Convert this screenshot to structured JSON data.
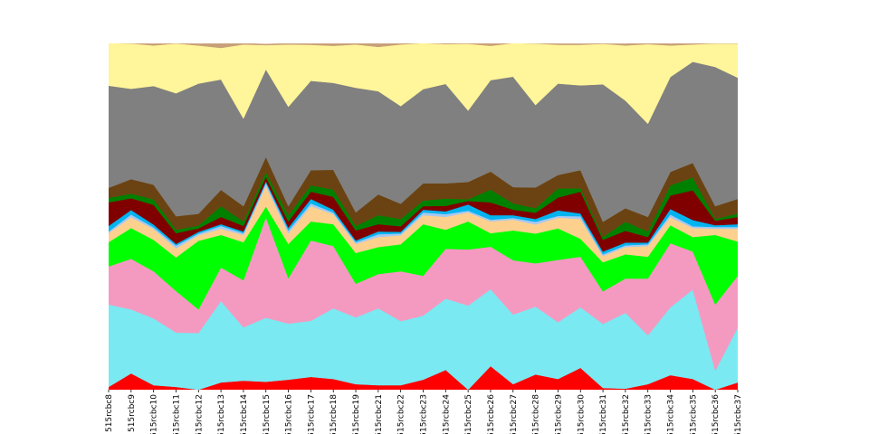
{
  "chart_data": {
    "type": "stacked_area",
    "categories": [
      "515rcbc8",
      "515rcbc9",
      "515rcbc10",
      "515rcbc11",
      "515rcbc12",
      "515rcbc13",
      "515rcbc14",
      "515rcbc15",
      "515rcbc16",
      "515rcbc17",
      "515rcbc18",
      "515rcbc19",
      "515rcbc21",
      "515rcbc22",
      "515rcbc23",
      "515rcbc24",
      "515rcbc25",
      "515rcbc26",
      "515rcbc27",
      "515rcbc28",
      "515rcbc29",
      "515rcbc30",
      "515rcbc31",
      "515rcbc32",
      "515rcbc33",
      "515rcbc34",
      "515rcbc35",
      "515rcbc36",
      "515rcbc37"
    ],
    "ylim": [
      0,
      100
    ],
    "series": [
      {
        "color": "#ff0000",
        "values": [
          0.8,
          4.7,
          1.3,
          0.8,
          0,
          2.1,
          2.6,
          2.3,
          2.9,
          3.7,
          3.1,
          1.6,
          1.3,
          1.3,
          2.9,
          5.7,
          0,
          6.8,
          1.6,
          4.4,
          3.1,
          6.3,
          0.5,
          0.3,
          1.6,
          4.2,
          3.1,
          0,
          2.1
        ]
      },
      {
        "color": "#7ae9f2",
        "values": [
          23.8,
          18.5,
          19.3,
          15.7,
          16.4,
          23.5,
          15.4,
          18.5,
          16.2,
          16.2,
          20.4,
          19.3,
          22.2,
          18.5,
          18.5,
          20.6,
          24.3,
          22.2,
          20.1,
          19.6,
          16.4,
          17.5,
          18.5,
          21.9,
          14.1,
          19.6,
          25.8,
          5.5,
          15.9
        ]
      },
      {
        "color": "#f49ac1",
        "values": [
          11.0,
          14.6,
          13.6,
          12.0,
          6.8,
          9.7,
          13.6,
          29.0,
          13.1,
          23.2,
          18.0,
          9.7,
          9.9,
          14.4,
          11.5,
          14.4,
          16.2,
          12.3,
          15.7,
          12.5,
          18.0,
          14.6,
          9.4,
          9.9,
          16.4,
          18.5,
          11.0,
          19.1,
          14.9
        ]
      },
      {
        "color": "#00ff00",
        "values": [
          7.0,
          8.9,
          9.1,
          9.7,
          19.8,
          9.4,
          11.0,
          3.1,
          9.9,
          5.5,
          6.3,
          8.9,
          7.8,
          7.8,
          14.9,
          5.5,
          8.1,
          3.9,
          8.6,
          8.6,
          9.1,
          5.2,
          8.4,
          7.0,
          6.3,
          5.2,
          4.2,
          20.1,
          9.9
        ]
      },
      {
        "color": "#fdd08e",
        "values": [
          2.6,
          3.1,
          3.1,
          2.6,
          1.6,
          1.8,
          2.1,
          6.0,
          3.1,
          4.4,
          2.9,
          2.6,
          2.9,
          2.6,
          2.6,
          3.7,
          2.6,
          3.4,
          3.1,
          2.6,
          3.1,
          5.7,
          1.8,
          2.1,
          3.1,
          2.3,
          2.6,
          1.8,
          3.7
        ]
      },
      {
        "color": "#a8c8f0",
        "values": [
          0.5,
          0.8,
          0.5,
          0.8,
          0.5,
          0.8,
          0.5,
          0.8,
          0.8,
          0.8,
          0.5,
          0.5,
          0.8,
          0.5,
          0.8,
          0.8,
          0.5,
          0.5,
          0.5,
          0.8,
          0.5,
          0.8,
          0.5,
          0.5,
          0.5,
          0.8,
          0.5,
          0.5,
          0.5
        ]
      },
      {
        "color": "#00b4f0",
        "values": [
          1.6,
          1.3,
          0.8,
          0.5,
          0.5,
          0.5,
          0.5,
          0.5,
          0.8,
          1.3,
          0.8,
          0.5,
          0.8,
          0.5,
          0.8,
          0.8,
          1.8,
          1.3,
          0.8,
          0.8,
          1.6,
          0.8,
          0.8,
          0.8,
          0.5,
          1.6,
          1.8,
          0.5,
          0.8
        ]
      },
      {
        "color": "#800000",
        "values": [
          6.8,
          3.4,
          5.7,
          3.1,
          1.0,
          2.1,
          1.6,
          1.3,
          1.8,
          2.1,
          3.7,
          2.9,
          2.1,
          1.6,
          1.0,
          1.6,
          1.0,
          3.7,
          1.6,
          1.8,
          3.7,
          6.3,
          3.4,
          3.4,
          1.6,
          3.9,
          8.6,
          1.3,
          2.1
        ]
      },
      {
        "color": "#008000",
        "values": [
          1.3,
          1.3,
          1.6,
          1.0,
          0.8,
          3.1,
          1.3,
          1.3,
          1.8,
          1.8,
          2.1,
          1.3,
          2.6,
          2.1,
          1.6,
          2.1,
          0.5,
          3.7,
          1.8,
          1.3,
          2.6,
          1.0,
          0.8,
          2.6,
          1.6,
          2.9,
          3.7,
          0.5,
          1.0
        ]
      },
      {
        "color": "#6b4312",
        "values": [
          2.9,
          4.2,
          4.2,
          3.9,
          3.4,
          4.7,
          4.4,
          4.4,
          2.6,
          4.4,
          5.7,
          3.9,
          6.0,
          4.4,
          5.0,
          4.4,
          5.0,
          5.2,
          4.7,
          6.0,
          3.9,
          5.2,
          4.4,
          3.9,
          4.2,
          3.9,
          4.2,
          3.7,
          4.2
        ]
      },
      {
        "color": "#808080",
        "values": [
          29.5,
          26.1,
          28.5,
          35.5,
          37.6,
          31.9,
          25.3,
          25.3,
          28.7,
          25.8,
          25.1,
          36.0,
          29.8,
          28.2,
          27.2,
          28.7,
          20.6,
          26.4,
          31.9,
          23.8,
          26.4,
          24.5,
          39.7,
          31.1,
          26.9,
          27.4,
          29.2,
          40.2,
          35.0
        ]
      },
      {
        "color": "#fff59a",
        "values": [
          12.3,
          13.1,
          11.7,
          14.4,
          11.0,
          9.1,
          21.4,
          7.0,
          18.0,
          10.4,
          10.7,
          12.5,
          12.8,
          17.8,
          13.3,
          11.5,
          19.3,
          9.9,
          9.7,
          17.8,
          11.2,
          11.7,
          11.7,
          15.9,
          23.0,
          9.1,
          5.0,
          6.8,
          9.9
        ]
      },
      {
        "color": "#c8a078",
        "values": [
          0,
          0,
          0.5,
          0,
          0.5,
          1.3,
          0.3,
          0.3,
          0.3,
          0.3,
          0.8,
          0.3,
          1.0,
          0.3,
          0,
          0.3,
          0,
          0.8,
          0,
          0,
          0.3,
          0.3,
          0,
          0.5,
          0.3,
          0.5,
          0.3,
          0,
          0
        ]
      }
    ]
  }
}
